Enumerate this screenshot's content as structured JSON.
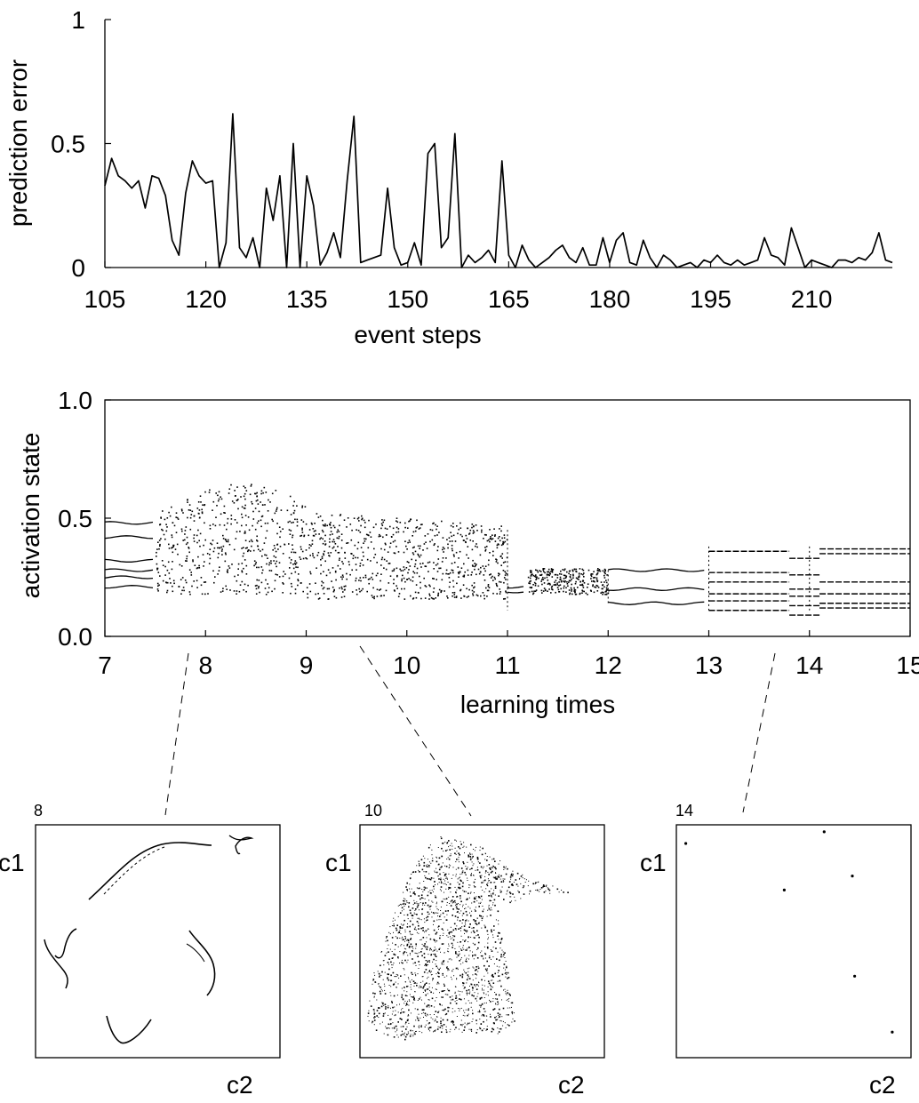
{
  "chart_data": [
    {
      "type": "line",
      "xlabel": "event steps",
      "ylabel": "prediction error",
      "xlim": [
        105,
        222
      ],
      "ylim": [
        0,
        1
      ],
      "xticks": [
        "105",
        "120",
        "135",
        "150",
        "165",
        "180",
        "195",
        "210"
      ],
      "yticks": [
        "0",
        "0.5",
        "1"
      ],
      "grid": false,
      "series": [
        {
          "x": [
            105,
            106,
            107,
            108,
            109,
            110,
            111,
            112,
            113,
            114,
            115,
            116,
            117,
            118,
            119,
            120,
            121,
            122,
            123,
            124,
            125,
            126,
            127,
            128,
            129,
            130,
            131,
            132,
            133,
            134,
            135,
            136,
            137,
            138,
            139,
            140,
            141,
            142,
            143,
            144,
            145,
            146,
            147,
            148,
            149,
            150,
            151,
            152,
            153,
            154,
            155,
            156,
            157,
            158,
            159,
            160,
            161,
            162,
            163,
            164,
            165,
            166,
            167,
            168,
            169,
            170,
            171,
            172,
            173,
            174,
            175,
            176,
            177,
            178,
            179,
            180,
            181,
            182,
            183,
            184,
            185,
            186,
            187,
            188,
            189,
            190,
            191,
            192,
            193,
            194,
            195,
            196,
            197,
            198,
            199,
            200,
            201,
            202,
            203,
            204,
            205,
            206,
            207,
            208,
            209,
            210,
            211,
            212,
            213,
            214,
            215,
            216,
            217,
            218,
            219,
            220,
            221,
            222
          ],
          "y": [
            0.33,
            0.44,
            0.37,
            0.35,
            0.32,
            0.35,
            0.24,
            0.37,
            0.36,
            0.29,
            0.11,
            0.05,
            0.3,
            0.43,
            0.37,
            0.34,
            0.35,
            0.0,
            0.1,
            0.62,
            0.08,
            0.04,
            0.12,
            0.0,
            0.32,
            0.19,
            0.37,
            0.0,
            0.5,
            0.0,
            0.37,
            0.25,
            0.01,
            0.06,
            0.14,
            0.04,
            0.35,
            0.61,
            0.02,
            0.03,
            0.04,
            0.05,
            0.32,
            0.08,
            0.01,
            0.02,
            0.1,
            0.01,
            0.46,
            0.5,
            0.08,
            0.12,
            0.54,
            0.0,
            0.05,
            0.02,
            0.04,
            0.07,
            0.02,
            0.43,
            0.05,
            0.0,
            0.09,
            0.03,
            0.0,
            0.02,
            0.04,
            0.07,
            0.09,
            0.04,
            0.02,
            0.08,
            0.01,
            0.01,
            0.12,
            0.02,
            0.11,
            0.14,
            0.02,
            0.01,
            0.11,
            0.04,
            0.0,
            0.05,
            0.03,
            0.0,
            0.01,
            0.02,
            0.0,
            0.03,
            0.02,
            0.05,
            0.02,
            0.01,
            0.03,
            0.01,
            0.02,
            0.03,
            0.12,
            0.05,
            0.04,
            0.01,
            0.16,
            0.08,
            0.0,
            0.03,
            0.02,
            0.01,
            0.0,
            0.03,
            0.03,
            0.02,
            0.04,
            0.03,
            0.06,
            0.14,
            0.03,
            0.02
          ]
        }
      ]
    },
    {
      "type": "scatter",
      "xlabel": "learning times",
      "ylabel": "activation state",
      "xlim": [
        7,
        15
      ],
      "ylim": [
        0,
        1
      ],
      "xticks": [
        "7",
        "8",
        "9",
        "10",
        "11",
        "12",
        "13",
        "14",
        "15"
      ],
      "yticks": [
        "0.0",
        "0.5",
        "1.0"
      ],
      "grid": false,
      "regimes": [
        {
          "x": [
            7.0,
            7.5
          ],
          "kind": "lines",
          "levels": [
            0.48,
            0.42,
            0.32,
            0.28,
            0.25,
            0.21
          ]
        },
        {
          "x": [
            7.5,
            9.0
          ],
          "kind": "dots",
          "band": [
            0.18,
            0.65
          ]
        },
        {
          "x": [
            9.0,
            11.0
          ],
          "kind": "dots",
          "band": [
            0.16,
            0.53
          ]
        },
        {
          "x": [
            11.0,
            11.2
          ],
          "kind": "lines",
          "levels": [
            0.21,
            0.19
          ]
        },
        {
          "x": [
            11.2,
            12.0
          ],
          "kind": "dots",
          "band": [
            0.18,
            0.29
          ]
        },
        {
          "x": [
            12.0,
            13.0
          ],
          "kind": "lines",
          "levels": [
            0.28,
            0.2,
            0.14
          ]
        },
        {
          "x": [
            13.0,
            13.8
          ],
          "kind": "dashes",
          "levels": [
            0.36,
            0.27,
            0.23,
            0.18,
            0.15,
            0.11
          ]
        },
        {
          "x": [
            13.8,
            14.1
          ],
          "kind": "dashes",
          "levels": [
            0.33,
            0.26,
            0.2,
            0.17,
            0.13,
            0.09
          ]
        },
        {
          "x": [
            14.1,
            15.0
          ],
          "kind": "dashes",
          "levels": [
            0.37,
            0.35,
            0.23,
            0.18,
            0.14,
            0.12
          ]
        }
      ]
    },
    {
      "type": "scatter",
      "label": "8",
      "xlabel": "c2",
      "ylabel": "c1",
      "pointer_x": 8.2,
      "description": "attractor with several curve segments"
    },
    {
      "type": "scatter",
      "label": "10",
      "xlabel": "c2",
      "ylabel": "c1",
      "pointer_x": 9.6,
      "description": "dense chaotic attractor"
    },
    {
      "type": "scatter",
      "label": "14",
      "xlabel": "c2",
      "ylabel": "c1",
      "pointer_x": 13.8,
      "points": [
        [
          0.04,
          0.92
        ],
        [
          0.63,
          0.97
        ],
        [
          0.75,
          0.78
        ],
        [
          0.46,
          0.72
        ],
        [
          0.76,
          0.35
        ],
        [
          0.92,
          0.11
        ]
      ]
    }
  ]
}
